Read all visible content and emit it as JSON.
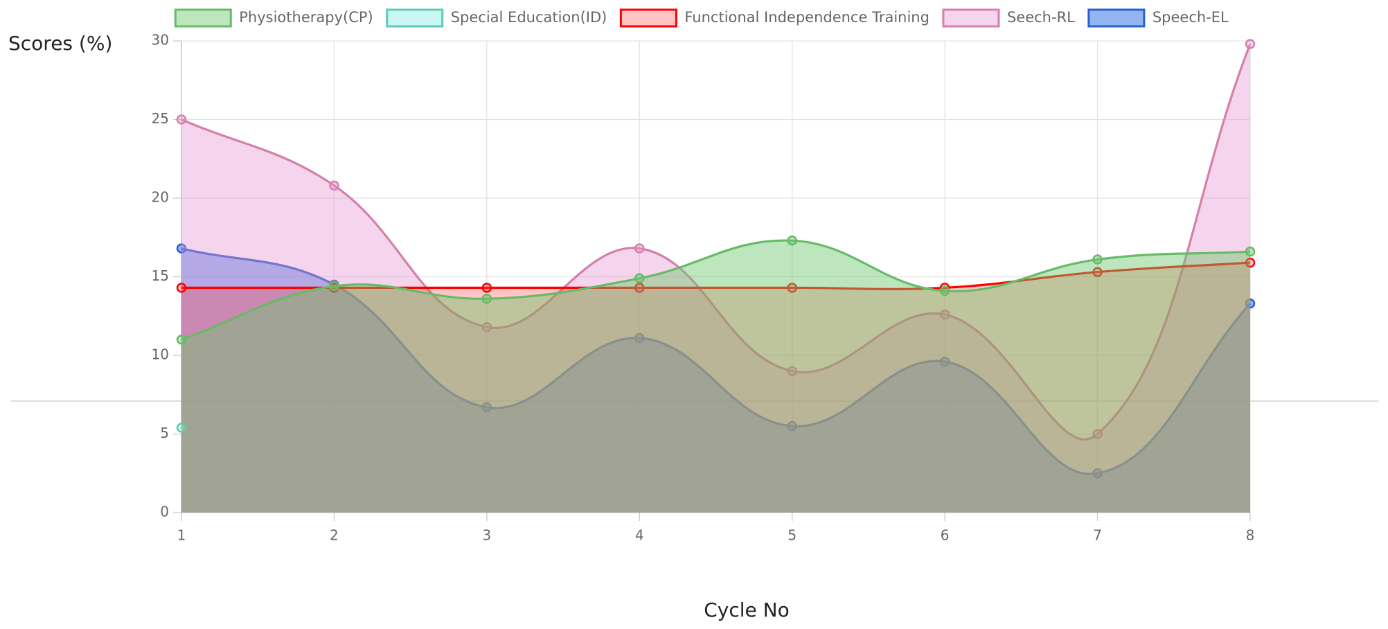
{
  "chart_data": {
    "type": "area-line",
    "ylabel": "Scores (%)",
    "xlabel": "Cycle No",
    "categories": [
      "1",
      "2",
      "3",
      "4",
      "5",
      "6",
      "7",
      "8"
    ],
    "ylim": [
      0,
      30
    ],
    "yticks": [
      0,
      5,
      10,
      15,
      20,
      25,
      30
    ],
    "grid": true,
    "legend": "top",
    "series": [
      {
        "name": "Physiotherapy(CP)",
        "color": "#66bb66",
        "fill": "rgba(110,200,110,0.45)",
        "values": [
          11,
          14.4,
          13.6,
          14.9,
          17.3,
          14.1,
          16.1,
          16.6
        ]
      },
      {
        "name": "Special Education(ID)",
        "color": "#5fcab9",
        "fill": "rgba(150,240,230,0.5)",
        "values": [
          5.4,
          null,
          null,
          null,
          null,
          null,
          null,
          null
        ]
      },
      {
        "name": "Functional Independence Training",
        "color": "#ff0000",
        "fill": "rgba(255,60,60,0.3)",
        "values": [
          14.3,
          14.3,
          14.3,
          14.3,
          14.3,
          14.3,
          15.3,
          15.9
        ]
      },
      {
        "name": "Seech-RL",
        "color": "#d480a8",
        "fill": "rgba(230,150,210,0.4)",
        "values": [
          25,
          20.8,
          11.8,
          16.8,
          9,
          12.6,
          5,
          29.8
        ]
      },
      {
        "name": "Speech-EL",
        "color": "#2a5fcc",
        "fill": "rgba(40,110,230,0.5)",
        "values": [
          16.8,
          14.5,
          6.7,
          11.1,
          5.5,
          9.6,
          2.5,
          13.3
        ]
      }
    ]
  }
}
